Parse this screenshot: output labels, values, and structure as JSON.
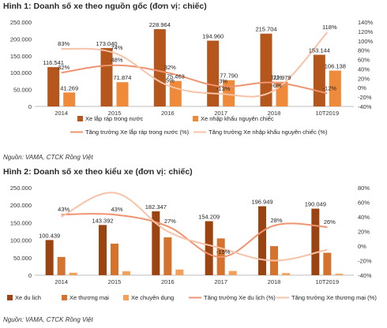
{
  "charts": [
    {
      "heading": "Hình 1: Doanh số xe theo nguồn gốc (đơn vị: chiếc)",
      "source": "Nguồn: VAMA, CTCK Rồng Việt"
    },
    {
      "heading": "Hình 2: Doanh số xe theo kiểu xe (đơn vị: chiếc)",
      "source": "Nguồn: VAMA, CTCK Rồng Việt"
    }
  ],
  "chart_data": [
    {
      "type": "bar",
      "title": "Hình 1: Doanh số xe theo nguồn gốc (đơn vị: chiếc)",
      "categories": [
        "2014",
        "2015",
        "2016",
        "2017",
        "2018",
        "10T2019"
      ],
      "y_left": {
        "min": 0,
        "max": 250000,
        "ticks": [
          "0",
          "50.000",
          "100.000",
          "150.000",
          "200.000",
          "250.000"
        ]
      },
      "y_right": {
        "min": -40,
        "max": 140,
        "ticks": [
          "-40%",
          "-20%",
          "0%",
          "20%",
          "40%",
          "60%",
          "80%",
          "100%",
          "120%",
          "140%"
        ]
      },
      "grid": false,
      "legend_position": "bottom",
      "bar_series": [
        {
          "name": "Xe lắp ráp trong nước",
          "color": "#b5561c",
          "values": [
            116541,
            173040,
            228964,
            194960,
            215704,
            153144
          ],
          "labels": [
            "116.541",
            "173.040",
            "228.964",
            "194.960",
            "215.704",
            "153.144"
          ]
        },
        {
          "name": "Xe nhập khẩu nguyên chiếc",
          "color": "#ee8a3a",
          "values": [
            41269,
            71874,
            75463,
            77790,
            72979,
            106138
          ],
          "labels": [
            "41.269",
            "71.874",
            "75.463",
            "77.790",
            "72.979",
            "106.138"
          ]
        }
      ],
      "line_series": [
        {
          "name": "Tăng trưởng Xe lắp ráp trong nước (%)",
          "color": "#ef9470",
          "values": [
            32,
            48,
            32,
            3,
            11,
            -12
          ],
          "labels": [
            "32%",
            "48%",
            "32%",
            "3%",
            "11%",
            "-12%"
          ]
        },
        {
          "name": "Tăng trưởng Xe nhập khẩu nguyên chiếc (%)",
          "color": "#f6c3a8",
          "values": [
            83,
            74,
            5,
            -13,
            -6,
            118
          ],
          "labels": [
            "83%",
            "74%",
            "5%",
            "-13%",
            "-6%",
            "118%"
          ]
        }
      ]
    },
    {
      "type": "bar",
      "title": "Hình 2: Doanh số xe theo kiểu xe (đơn vị: chiếc)",
      "categories": [
        "2014",
        "2015",
        "2016",
        "2017",
        "2018",
        "10T2019"
      ],
      "y_left": {
        "min": 0,
        "max": 250000,
        "ticks": [
          "0",
          "50.000",
          "100.000",
          "150.000",
          "200.000",
          "250.000"
        ]
      },
      "y_right": {
        "min": -40,
        "max": 80,
        "ticks": [
          "-40%",
          "-20%",
          "0%",
          "20%",
          "40%",
          "60%",
          "80%"
        ]
      },
      "grid": false,
      "legend_position": "bottom",
      "bar_series": [
        {
          "name": "Xe du lịch",
          "color": "#9c4312",
          "values": [
            100439,
            143392,
            182347,
            154209,
            196949,
            190049
          ],
          "labels": [
            "100.439",
            "143.392",
            "182.347",
            "154.209",
            "196.949",
            "190.049"
          ]
        },
        {
          "name": "Xe thương mại",
          "color": "#d4722e",
          "values": [
            52000,
            90000,
            108000,
            105000,
            83000,
            64000
          ],
          "labels": []
        },
        {
          "name": "Xe chuyên dụng",
          "color": "#f3a05a",
          "values": [
            7000,
            11000,
            16000,
            12000,
            6000,
            4000
          ],
          "labels": []
        }
      ],
      "line_series": [
        {
          "name": "Tăng trưởng Xe du lịch (%)",
          "color": "#ef9470",
          "values": [
            43,
            43,
            27,
            -15,
            28,
            26
          ],
          "labels": [
            "43%",
            "43%",
            "27%",
            "-15%",
            "28%",
            "26%"
          ]
        },
        {
          "name": "Tăng trưởng Xe thương mại (%)",
          "color": "#f6c3a8",
          "values": [
            40,
            73,
            20,
            -3,
            -20,
            -5
          ],
          "labels": []
        }
      ]
    }
  ]
}
